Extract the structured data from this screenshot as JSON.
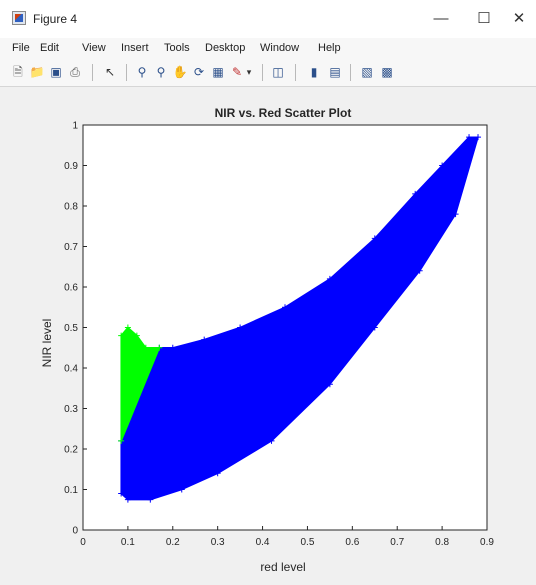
{
  "window": {
    "title": "Figure 4",
    "icons": [
      "matlab-figure-icon",
      "minimize-icon",
      "maximize-icon",
      "close-icon"
    ]
  },
  "menu": {
    "items": [
      "File",
      "Edit",
      "View",
      "Insert",
      "Tools",
      "Desktop",
      "Window",
      "Help"
    ]
  },
  "toolbar": {
    "icons": [
      "new-figure-icon",
      "open-file-icon",
      "save-icon",
      "print-icon",
      "edit-plot-icon",
      "zoom-in-icon",
      "zoom-out-icon",
      "pan-icon",
      "rotate-3d-icon",
      "data-cursor-icon",
      "brush-icon",
      "brush-dropdown-icon",
      "link-plot-icon",
      "colorbar-icon",
      "legend-icon",
      "hide-plot-tools-icon",
      "show-plot-tools-icon"
    ]
  },
  "colors": {
    "series_blue": "#0000ff",
    "series_green": "#00ff00",
    "axes_bg": "#ffffff",
    "figure_bg": "#f0f0f0"
  },
  "chart_data": {
    "type": "scatter",
    "title": "NIR vs. Red Scatter Plot",
    "xlabel": "red level",
    "ylabel": "NIR level",
    "xlim": [
      0,
      0.9
    ],
    "ylim": [
      0,
      1
    ],
    "xticks": [
      "0",
      "0.1",
      "0.2",
      "0.3",
      "0.4",
      "0.5",
      "0.6",
      "0.7",
      "0.8",
      "0.9"
    ],
    "yticks": [
      "0",
      "0.1",
      "0.2",
      "0.3",
      "0.4",
      "0.5",
      "0.6",
      "0.7",
      "0.8",
      "0.9",
      "1"
    ],
    "grid": false,
    "legend": false,
    "series": [
      {
        "color": "#0000ff",
        "marker": "+",
        "regions": [
          [
            [
              0.085,
              0.09
            ],
            [
              0.1,
              0.075
            ],
            [
              0.15,
              0.075
            ],
            [
              0.22,
              0.1
            ],
            [
              0.3,
              0.14
            ],
            [
              0.42,
              0.22
            ],
            [
              0.55,
              0.36
            ],
            [
              0.65,
              0.5
            ],
            [
              0.75,
              0.64
            ],
            [
              0.83,
              0.78
            ],
            [
              0.88,
              0.97
            ],
            [
              0.86,
              0.97
            ],
            [
              0.8,
              0.9
            ],
            [
              0.74,
              0.83
            ],
            [
              0.65,
              0.72
            ],
            [
              0.55,
              0.62
            ],
            [
              0.45,
              0.55
            ],
            [
              0.35,
              0.5
            ],
            [
              0.27,
              0.47
            ],
            [
              0.2,
              0.45
            ],
            [
              0.17,
              0.45
            ],
            [
              0.085,
              0.22
            ]
          ],
          [
            [
              0.23,
              0.23
            ],
            [
              0.3,
              0.28
            ],
            [
              0.39,
              0.33
            ],
            [
              0.41,
              0.37
            ],
            [
              0.43,
              0.36
            ],
            [
              0.38,
              0.31
            ],
            [
              0.3,
              0.25
            ],
            [
              0.24,
              0.2
            ]
          ]
        ]
      },
      {
        "color": "#00ff00",
        "marker": "+",
        "regions": [
          [
            [
              0.085,
              0.22
            ],
            [
              0.085,
              0.48
            ],
            [
              0.1,
              0.5
            ],
            [
              0.12,
              0.48
            ],
            [
              0.14,
              0.45
            ],
            [
              0.17,
              0.45
            ]
          ]
        ]
      }
    ]
  }
}
